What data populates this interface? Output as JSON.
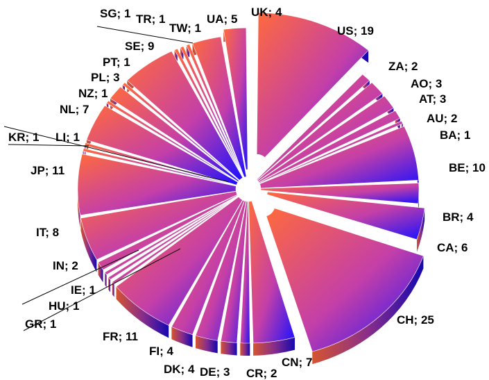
{
  "chart_data": {
    "type": "pie",
    "style": "3d-exploded",
    "gradient_colors": [
      "#ff6a3c",
      "#c43fa8",
      "#1c10ff"
    ],
    "slices": [
      {
        "label": "US",
        "value": 19,
        "text": "US; 19"
      },
      {
        "label": "ZA",
        "value": 2,
        "text": "ZA; 2"
      },
      {
        "label": "AO",
        "value": 3,
        "text": "AO; 3"
      },
      {
        "label": "AT",
        "value": 3,
        "text": "AT; 3"
      },
      {
        "label": "AU",
        "value": 2,
        "text": "AU; 2"
      },
      {
        "label": "BA",
        "value": 1,
        "text": "BA; 1"
      },
      {
        "label": "BE",
        "value": 10,
        "text": "BE; 10"
      },
      {
        "label": "BR",
        "value": 4,
        "text": "BR; 4"
      },
      {
        "label": "CA",
        "value": 6,
        "text": "CA; 6"
      },
      {
        "label": "CH",
        "value": 25,
        "text": "CH; 25"
      },
      {
        "label": "CN",
        "value": 7,
        "text": "CN; 7"
      },
      {
        "label": "CR",
        "value": 2,
        "text": "CR; 2"
      },
      {
        "label": "DE",
        "value": 3,
        "text": "DE; 3"
      },
      {
        "label": "DK",
        "value": 4,
        "text": "DK; 4"
      },
      {
        "label": "FI",
        "value": 4,
        "text": "FI; 4"
      },
      {
        "label": "FR",
        "value": 11,
        "text": "FR; 11"
      },
      {
        "label": "GR",
        "value": 1,
        "text": "GR; 1"
      },
      {
        "label": "HU",
        "value": 1,
        "text": "HU; 1"
      },
      {
        "label": "IE",
        "value": 1,
        "text": "IE; 1"
      },
      {
        "label": "IN",
        "value": 2,
        "text": "IN; 2"
      },
      {
        "label": "IT",
        "value": 8,
        "text": "IT; 8"
      },
      {
        "label": "JP",
        "value": 11,
        "text": "JP; 11"
      },
      {
        "label": "LI",
        "value": 1,
        "text": "LI; 1"
      },
      {
        "label": "KR",
        "value": 1,
        "text": "KR; 1"
      },
      {
        "label": "NL",
        "value": 7,
        "text": "NL; 7"
      },
      {
        "label": "NZ",
        "value": 1,
        "text": "NZ; 1"
      },
      {
        "label": "PL",
        "value": 3,
        "text": "PL; 3"
      },
      {
        "label": "PT",
        "value": 1,
        "text": "PT; 1"
      },
      {
        "label": "SE",
        "value": 9,
        "text": "SE; 9"
      },
      {
        "label": "SG",
        "value": 1,
        "text": "SG; 1"
      },
      {
        "label": "TR",
        "value": 1,
        "text": "TR; 1"
      },
      {
        "label": "TW",
        "value": 1,
        "text": "TW; 1"
      },
      {
        "label": "UA",
        "value": 5,
        "text": "UA; 5"
      },
      {
        "label": "UK",
        "value": 4,
        "text": "UK; 4"
      }
    ]
  }
}
